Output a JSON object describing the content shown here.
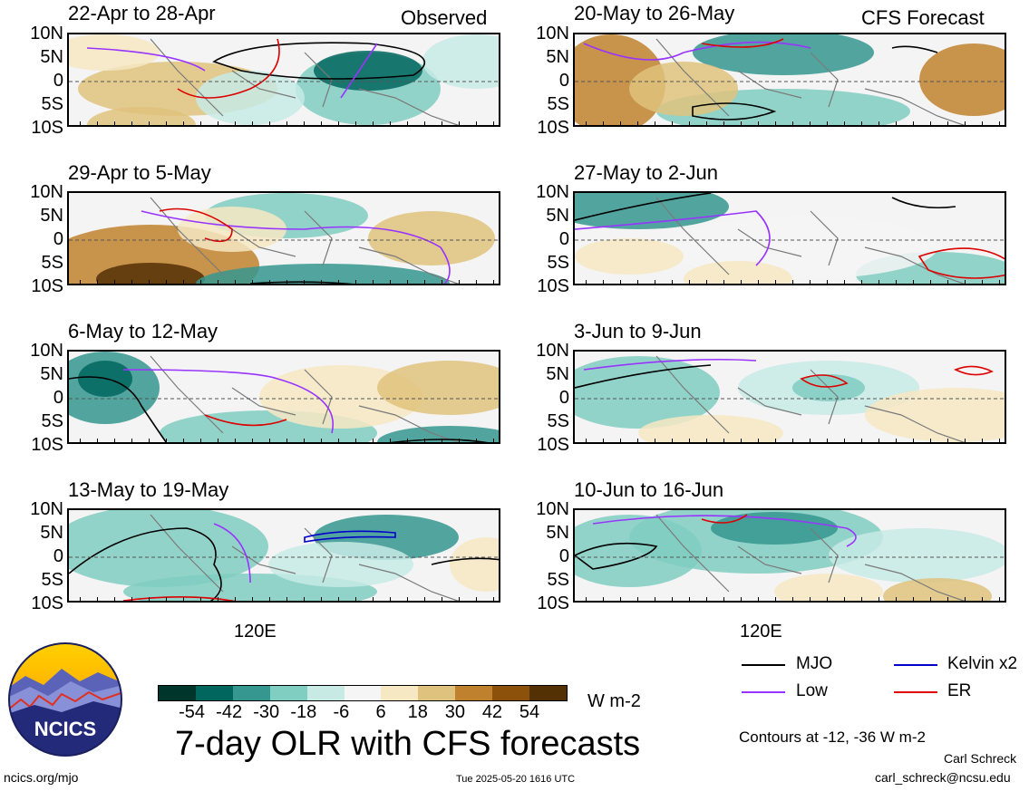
{
  "headers": {
    "observed": "Observed",
    "forecast": "CFS Forecast"
  },
  "lat_labels": [
    "10N",
    "5N",
    "0",
    "5S",
    "10S"
  ],
  "x_label": "120E",
  "panels": [
    {
      "title": "22-Apr to 28-Apr",
      "column": "Observed"
    },
    {
      "title": "29-Apr to 5-May",
      "column": "Observed"
    },
    {
      "title": "6-May to 12-May",
      "column": "Observed"
    },
    {
      "title": "13-May to 19-May",
      "column": "Observed"
    },
    {
      "title": "20-May to 26-May",
      "column": "CFS Forecast"
    },
    {
      "title": "27-May to 2-Jun",
      "column": "CFS Forecast"
    },
    {
      "title": "3-Jun to 9-Jun",
      "column": "CFS Forecast"
    },
    {
      "title": "10-Jun to 16-Jun",
      "column": "CFS Forecast"
    }
  ],
  "chart_data": {
    "type": "heatmap",
    "title": "7-day OLR with CFS forecasts",
    "units": "W m-2",
    "ylim": [
      "10S",
      "10N"
    ],
    "colorbar": {
      "ticks": [
        "-54",
        "-42",
        "-30",
        "-18",
        "-6",
        "6",
        "18",
        "30",
        "42",
        "54"
      ],
      "colors": [
        "#00352c",
        "#01665e",
        "#35978f",
        "#80cdc1",
        "#c7eae5",
        "#f5f5f5",
        "#f6e8c3",
        "#dfc27d",
        "#bf812d",
        "#8c510a",
        "#543005"
      ]
    },
    "legend": [
      {
        "label": "MJO",
        "color": "#000000"
      },
      {
        "label": "Kelvin x2",
        "color": "#0000cc"
      },
      {
        "label": "Low",
        "color": "#9933ff"
      },
      {
        "label": "ER",
        "color": "#dd0000"
      }
    ],
    "contour_note": "Contours at -12, -36 W m-2"
  },
  "footer": {
    "site": "ncics.org/mjo",
    "timestamp": "Tue 2025-05-20 1616 UTC",
    "author": "Carl Schreck",
    "email": "carl_schreck@ncsu.edu",
    "logo_text": "NCICS"
  }
}
